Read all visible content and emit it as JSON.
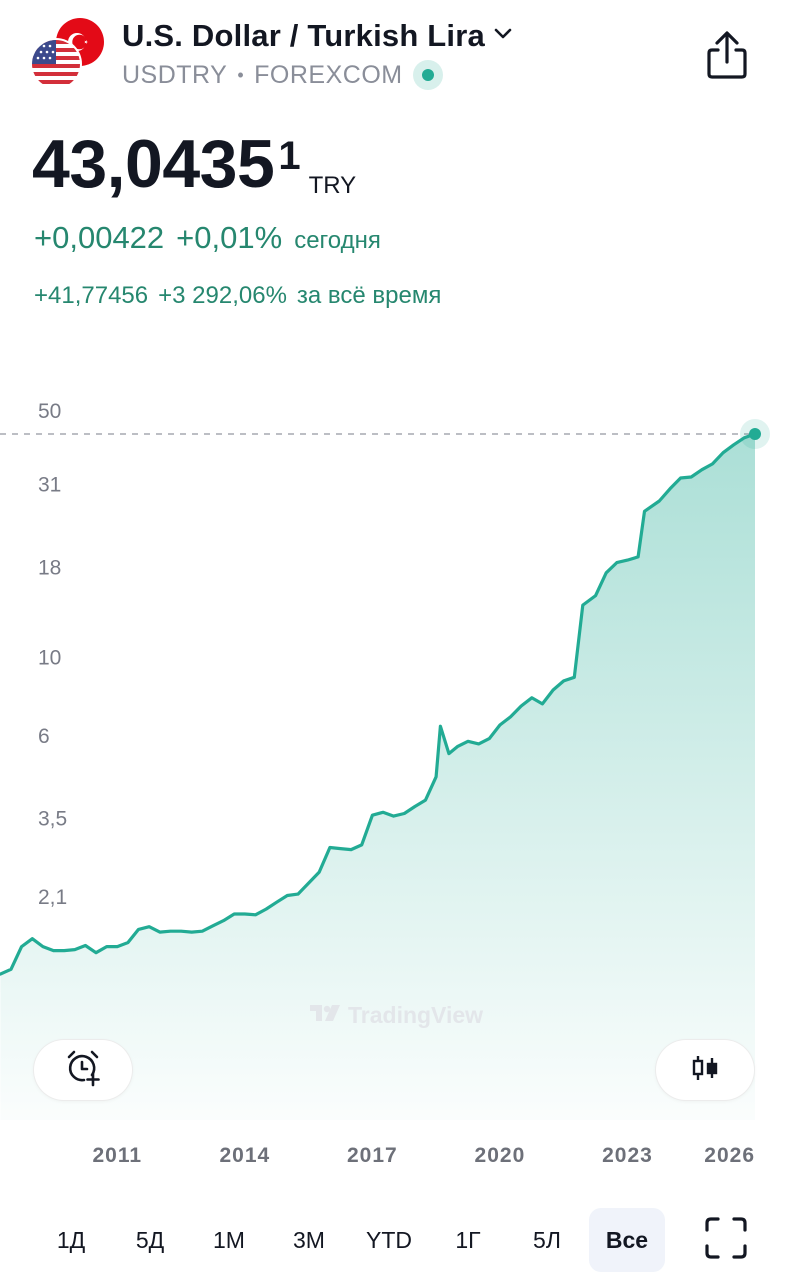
{
  "header": {
    "title": "U.S. Dollar / Turkish Lira",
    "symbol": "USDTRY",
    "separator": "•",
    "exchange": "FOREXCOM",
    "icons": {
      "flag": "usd-try-flags-icon",
      "dropdown": "chevron-down-icon",
      "share": "share-icon",
      "status": "market-status-dot-icon"
    },
    "status_color": "#22ab94"
  },
  "quote": {
    "price": "43,0435",
    "price_sup": "1",
    "currency": "TRY",
    "change_abs": "+0,00422",
    "change_pct": "+0,01%",
    "change_label": "сегодня",
    "alltime_abs": "+41,77456",
    "alltime_pct": "+3 292,06%",
    "alltime_label": "за всё время",
    "positive_color": "#26876f"
  },
  "chart_data": {
    "type": "area",
    "scale": "log",
    "title": "",
    "xlabel": "",
    "ylabel": "",
    "ylim": [
      1.2,
      56
    ],
    "yticks": [
      "50",
      "31",
      "18",
      "10",
      "6",
      "3,5",
      "2,1"
    ],
    "ytick_values": [
      50,
      31,
      18,
      10,
      6,
      3.5,
      2.1
    ],
    "xticks": [
      "2011",
      "2014",
      "2017",
      "2020",
      "2023",
      "2026"
    ],
    "xtick_values": [
      2011,
      2014,
      2017,
      2020,
      2023,
      2026
    ],
    "last_value": 43.04,
    "line_color": "#22ab94",
    "series": [
      {
        "points": [
          [
            2008.25,
            1.27
          ],
          [
            2008.5,
            1.31
          ],
          [
            2008.75,
            1.52
          ],
          [
            2009.0,
            1.6
          ],
          [
            2009.25,
            1.52
          ],
          [
            2009.5,
            1.48
          ],
          [
            2009.75,
            1.48
          ],
          [
            2010.0,
            1.49
          ],
          [
            2010.25,
            1.53
          ],
          [
            2010.5,
            1.46
          ],
          [
            2010.75,
            1.52
          ],
          [
            2011.0,
            1.52
          ],
          [
            2011.25,
            1.56
          ],
          [
            2011.5,
            1.7
          ],
          [
            2011.75,
            1.73
          ],
          [
            2012.0,
            1.67
          ],
          [
            2012.25,
            1.68
          ],
          [
            2012.5,
            1.68
          ],
          [
            2012.75,
            1.67
          ],
          [
            2013.0,
            1.68
          ],
          [
            2013.25,
            1.74
          ],
          [
            2013.5,
            1.8
          ],
          [
            2013.75,
            1.88
          ],
          [
            2014.0,
            1.88
          ],
          [
            2014.25,
            1.87
          ],
          [
            2014.5,
            1.94
          ],
          [
            2014.75,
            2.03
          ],
          [
            2015.0,
            2.12
          ],
          [
            2015.25,
            2.14
          ],
          [
            2015.5,
            2.3
          ],
          [
            2015.75,
            2.47
          ],
          [
            2016.0,
            2.9
          ],
          [
            2016.25,
            2.88
          ],
          [
            2016.5,
            2.86
          ],
          [
            2016.75,
            2.95
          ],
          [
            2017.0,
            3.58
          ],
          [
            2017.25,
            3.65
          ],
          [
            2017.5,
            3.56
          ],
          [
            2017.75,
            3.62
          ],
          [
            2018.0,
            3.79
          ],
          [
            2018.25,
            3.95
          ],
          [
            2018.5,
            4.6
          ],
          [
            2018.6,
            6.4
          ],
          [
            2018.8,
            5.35
          ],
          [
            2019.0,
            5.6
          ],
          [
            2019.25,
            5.8
          ],
          [
            2019.5,
            5.7
          ],
          [
            2019.75,
            5.9
          ],
          [
            2020.0,
            6.45
          ],
          [
            2020.25,
            6.8
          ],
          [
            2020.5,
            7.3
          ],
          [
            2020.75,
            7.7
          ],
          [
            2021.0,
            7.4
          ],
          [
            2021.25,
            8.1
          ],
          [
            2021.5,
            8.6
          ],
          [
            2021.75,
            8.8
          ],
          [
            2021.95,
            14.1
          ],
          [
            2022.25,
            15.0
          ],
          [
            2022.5,
            17.4
          ],
          [
            2022.75,
            18.6
          ],
          [
            2023.0,
            18.9
          ],
          [
            2023.25,
            19.3
          ],
          [
            2023.4,
            26.0
          ],
          [
            2023.75,
            27.8
          ],
          [
            2024.0,
            30.1
          ],
          [
            2024.25,
            32.3
          ],
          [
            2024.5,
            32.5
          ],
          [
            2024.75,
            34.1
          ],
          [
            2025.0,
            35.4
          ],
          [
            2025.25,
            38.1
          ],
          [
            2025.5,
            40.1
          ],
          [
            2025.75,
            42.0
          ],
          [
            2026.0,
            43.04
          ]
        ]
      }
    ]
  },
  "watermark": {
    "text": "TradingView",
    "icon": "tradingview-logo-icon"
  },
  "controls": {
    "alert_icon": "add-alert-clock-icon",
    "chart_type_icon": "candlestick-icon",
    "expand_icon": "fullscreen-expand-icon"
  },
  "ranges": [
    "1Д",
    "5Д",
    "1М",
    "3М",
    "YTD",
    "1Г",
    "5Л",
    "Все"
  ],
  "active_range": "Все"
}
